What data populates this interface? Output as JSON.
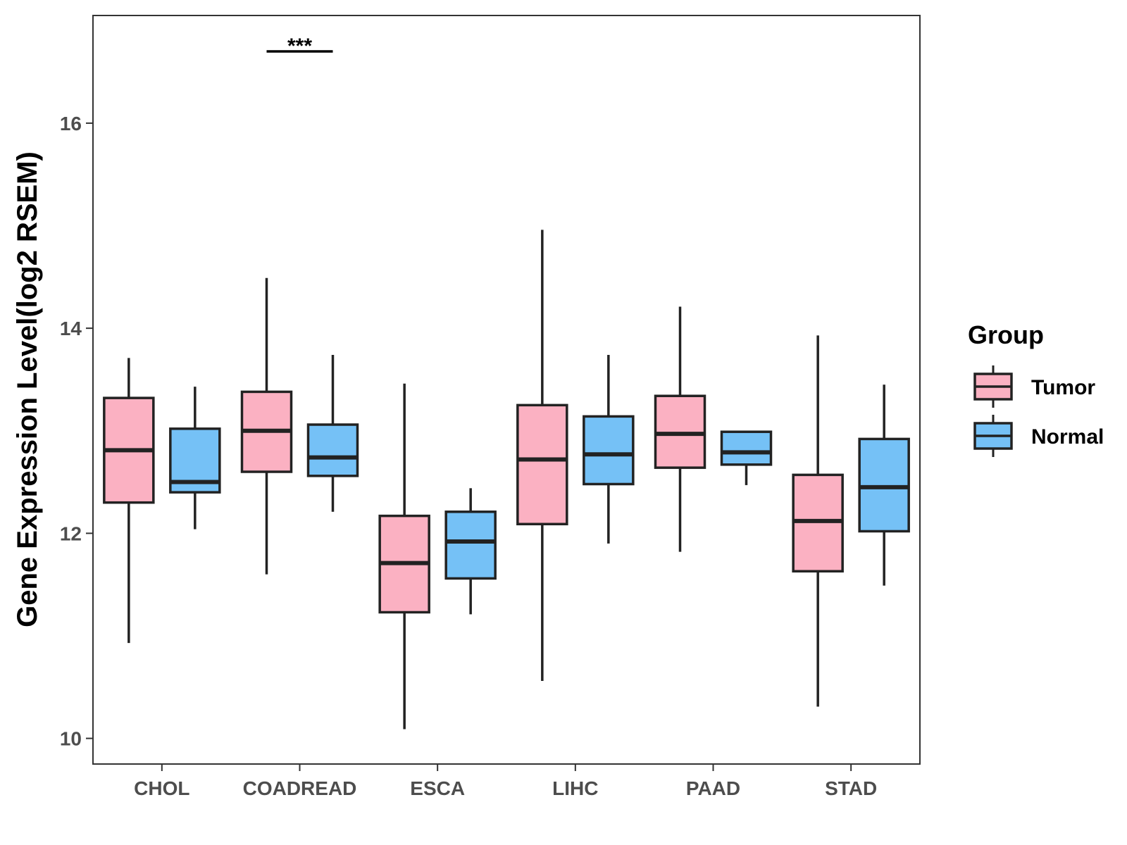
{
  "chart_data": {
    "type": "boxplot",
    "title": "",
    "xlabel": "",
    "ylabel": "Gene Expression Level(log2 RSEM)",
    "ylim": [
      9.75,
      17.05
    ],
    "yticks": [
      10,
      12,
      14,
      16
    ],
    "ytick_labels": [
      "10",
      "12",
      "14",
      "16"
    ],
    "grid": false,
    "categories": [
      "CHOL",
      "COADREAD",
      "ESCA",
      "LIHC",
      "PAAD",
      "STAD"
    ],
    "legend": {
      "title": "Group",
      "position": "right",
      "entries": [
        "Tumor",
        "Normal"
      ]
    },
    "series": [
      {
        "name": "Tumor",
        "color": "#FBB1C2",
        "boxes": [
          {
            "min": 10.93,
            "q1": 12.3,
            "median": 12.81,
            "q3": 13.32,
            "max": 13.71
          },
          {
            "min": 11.6,
            "q1": 12.6,
            "median": 13.0,
            "q3": 13.38,
            "max": 14.49
          },
          {
            "min": 10.09,
            "q1": 11.23,
            "median": 11.71,
            "q3": 12.17,
            "max": 13.46
          },
          {
            "min": 10.56,
            "q1": 12.09,
            "median": 12.72,
            "q3": 13.25,
            "max": 14.96
          },
          {
            "min": 11.82,
            "q1": 12.64,
            "median": 12.97,
            "q3": 13.34,
            "max": 14.21
          },
          {
            "min": 10.31,
            "q1": 11.63,
            "median": 12.12,
            "q3": 12.57,
            "max": 13.93
          }
        ]
      },
      {
        "name": "Normal",
        "color": "#75C1F6",
        "boxes": [
          {
            "min": 12.04,
            "q1": 12.4,
            "median": 12.5,
            "q3": 13.02,
            "max": 13.43
          },
          {
            "min": 12.21,
            "q1": 12.56,
            "median": 12.74,
            "q3": 13.06,
            "max": 13.74
          },
          {
            "min": 11.21,
            "q1": 11.56,
            "median": 11.92,
            "q3": 12.21,
            "max": 12.44
          },
          {
            "min": 11.9,
            "q1": 12.48,
            "median": 12.77,
            "q3": 13.14,
            "max": 13.74
          },
          {
            "min": 12.47,
            "q1": 12.67,
            "median": 12.79,
            "q3": 12.99,
            "max": 12.99
          },
          {
            "min": 11.49,
            "q1": 12.02,
            "median": 12.45,
            "q3": 12.92,
            "max": 13.45
          }
        ]
      }
    ],
    "annotations": [
      {
        "category": "COADREAD",
        "label": "***",
        "y": 16.7
      }
    ]
  }
}
